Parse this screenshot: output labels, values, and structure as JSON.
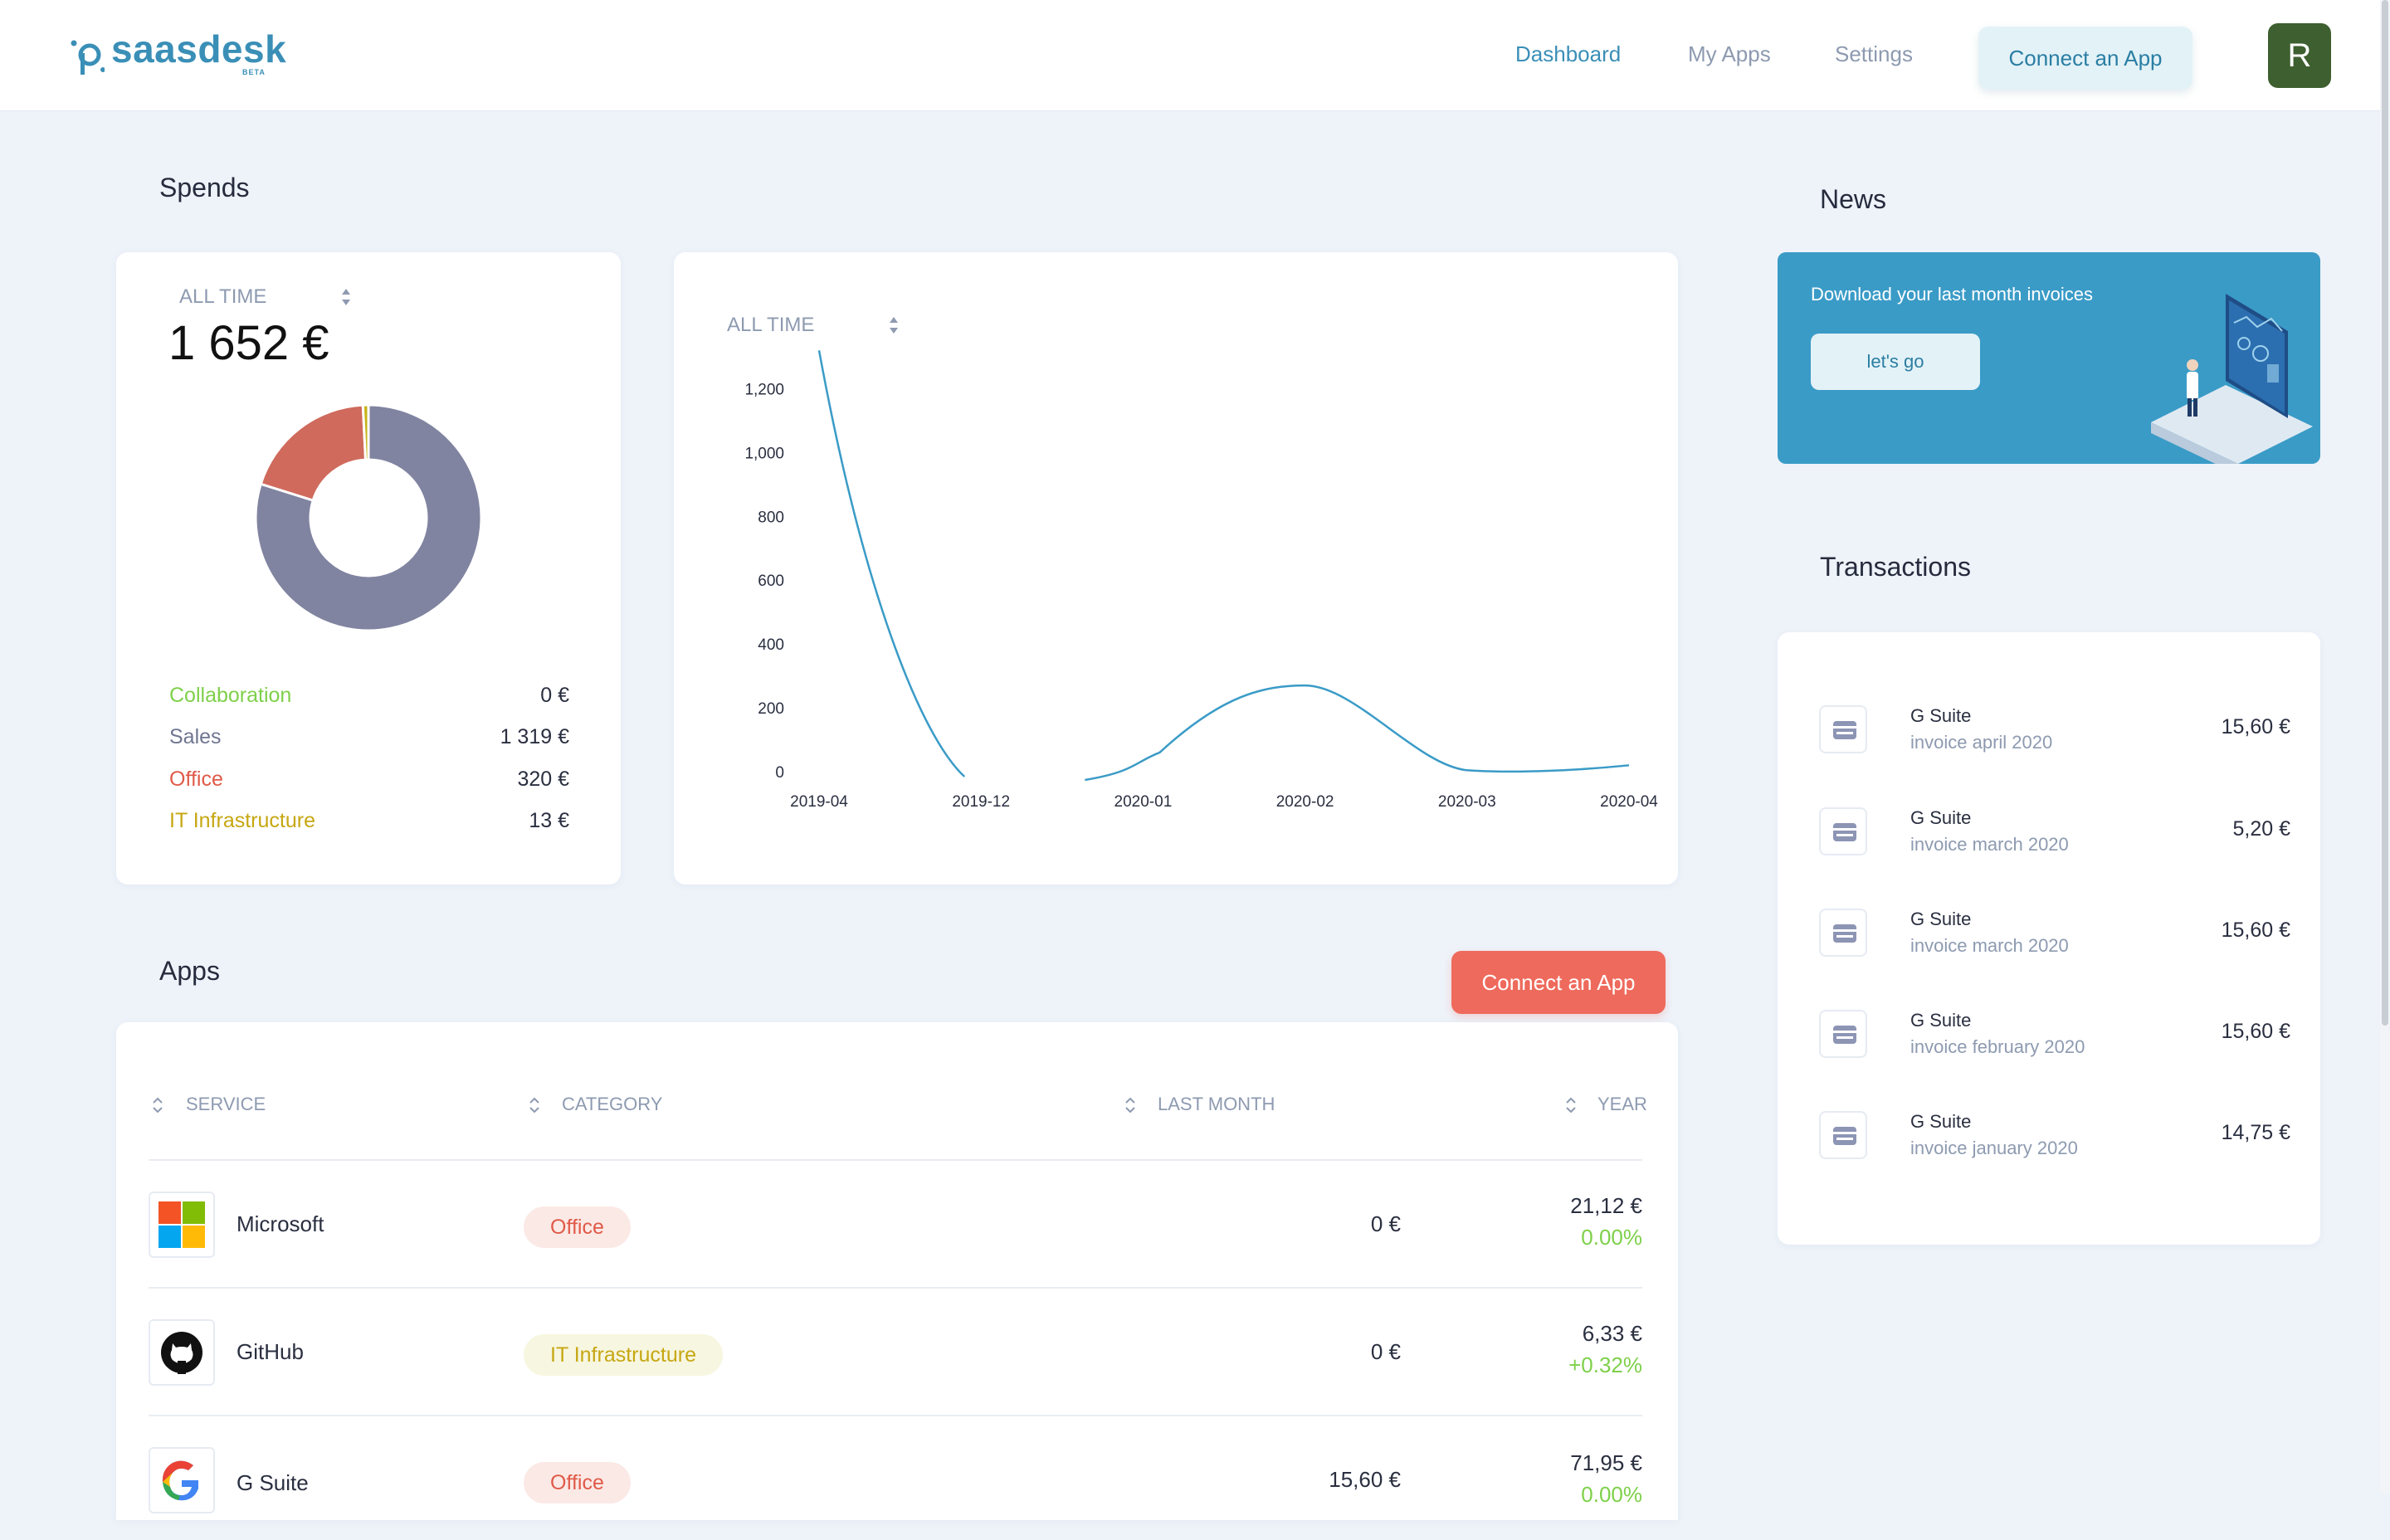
{
  "header": {
    "logo_text": "saasdesk",
    "logo_badge": "BETA",
    "nav": [
      "Dashboard",
      "My Apps",
      "Settings"
    ],
    "connect_label": "Connect an App",
    "avatar_initial": "R",
    "colors": {
      "brand": "#3a8fb7",
      "avatar": "#3e5f2f"
    }
  },
  "spends": {
    "title": "Spends",
    "period": "ALL TIME",
    "total": "1 652 €",
    "categories": [
      {
        "name": "Collaboration",
        "value": "0 €",
        "amount": 0,
        "color": "#7ed04a"
      },
      {
        "name": "Sales",
        "value": "1 319 €",
        "amount": 1319,
        "color": "#8084a0"
      },
      {
        "name": "Office",
        "value": "320 €",
        "amount": 320,
        "color": "#cf6a5c"
      },
      {
        "name": "IT Infrastructure",
        "value": "13 €",
        "amount": 13,
        "color": "#c6b318"
      }
    ]
  },
  "trend": {
    "period": "ALL TIME",
    "chart_data": {
      "type": "line",
      "x": [
        "2019-04",
        "2019-12",
        "2020-01",
        "2020-02",
        "2020-03",
        "2020-04"
      ],
      "y_ticks": [
        0,
        200,
        400,
        600,
        800,
        1000,
        1200
      ],
      "ylim": [
        0,
        1300
      ],
      "values": [
        1320,
        0,
        0,
        270,
        20,
        20
      ],
      "color": "#3a9bc7"
    }
  },
  "news": {
    "title": "News",
    "text": "Download your last month invoices",
    "button": "let's go"
  },
  "transactions": {
    "title": "Transactions",
    "items": [
      {
        "name": "G Suite",
        "desc": "invoice april 2020",
        "amount": "15,60 €"
      },
      {
        "name": "G Suite",
        "desc": "invoice march 2020",
        "amount": "5,20 €"
      },
      {
        "name": "G Suite",
        "desc": "invoice march 2020",
        "amount": "15,60 €"
      },
      {
        "name": "G Suite",
        "desc": "invoice february 2020",
        "amount": "15,60 €"
      },
      {
        "name": "G Suite",
        "desc": "invoice january 2020",
        "amount": "14,75 €"
      }
    ]
  },
  "apps": {
    "title": "Apps",
    "connect_label": "Connect an App",
    "columns": [
      "SERVICE",
      "CATEGORY",
      "LAST MONTH",
      "YEAR"
    ],
    "rows": [
      {
        "service": "Microsoft",
        "category": "Office",
        "last_month": "0 €",
        "year": "21,12 €",
        "change": "0.00%",
        "logo": "microsoft-logo"
      },
      {
        "service": "GitHub",
        "category": "IT Infrastructure",
        "last_month": "0 €",
        "year": "6,33 €",
        "change": "+0.32%",
        "logo": "github-logo"
      },
      {
        "service": "G Suite",
        "category": "Office",
        "last_month": "15,60 €",
        "year": "71,95 €",
        "change": "0.00%",
        "logo": "google-logo"
      }
    ]
  }
}
